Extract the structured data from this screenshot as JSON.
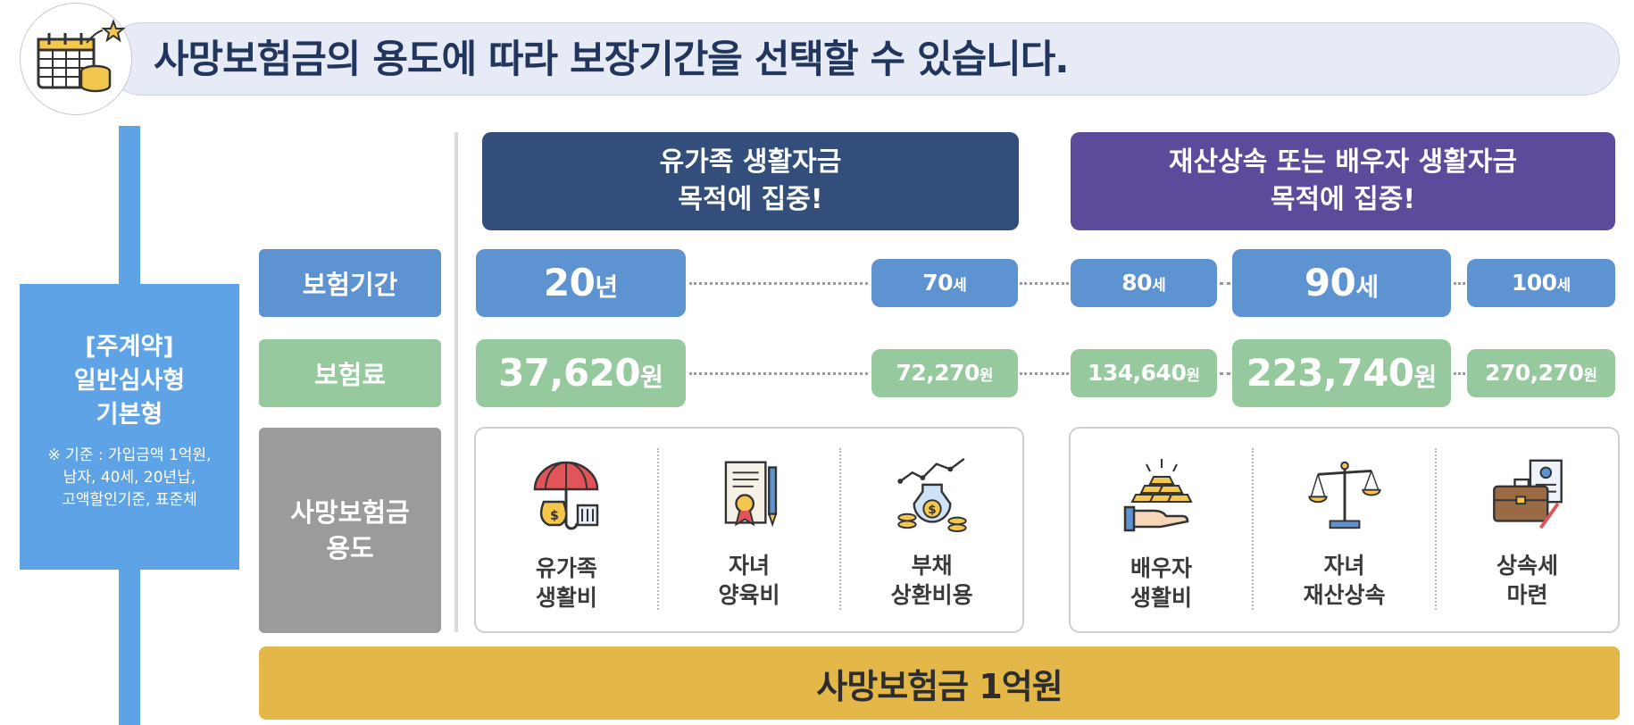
{
  "header": {
    "title": "사망보험금의 용도에 따라 보장기간을 선택할 수 있습니다.",
    "icon": "calendar-coins-icon"
  },
  "plan": {
    "title_line1": "[주계약]",
    "title_line2": "일반심사형",
    "title_line3": "기본형",
    "note_line1": "※ 기준 : 가입금액 1억원,",
    "note_line2": "남자, 40세, 20년납,",
    "note_line3": "고액할인기준, 표준체"
  },
  "row_labels": {
    "period": "보험기간",
    "premium": "보험료",
    "usage_line1": "사망보험금",
    "usage_line2": "용도"
  },
  "column_headers": {
    "left_line1": "유가족 생활자금",
    "left_line2": "목적에 집중!",
    "right_line1": "재산상속 또는 배우자 생활자금",
    "right_line2": "목적에 집중!"
  },
  "periods": [
    {
      "num": "20",
      "unit": "년"
    },
    {
      "num": "70",
      "unit": "세"
    },
    {
      "num": "80",
      "unit": "세"
    },
    {
      "num": "90",
      "unit": "세"
    },
    {
      "num": "100",
      "unit": "세"
    }
  ],
  "premiums": [
    {
      "num": "37,620",
      "unit": "원"
    },
    {
      "num": "72,270",
      "unit": "원"
    },
    {
      "num": "134,640",
      "unit": "원"
    },
    {
      "num": "223,740",
      "unit": "원"
    },
    {
      "num": "270,270",
      "unit": "원"
    }
  ],
  "usages_left": [
    {
      "line1": "유가족",
      "line2": "생활비",
      "icon": "umbrella-money-icon"
    },
    {
      "line1": "자녀",
      "line2": "양육비",
      "icon": "certificate-icon"
    },
    {
      "line1": "부채",
      "line2": "상환비용",
      "icon": "coins-growth-icon"
    }
  ],
  "usages_right": [
    {
      "line1": "배우자",
      "line2": "생활비",
      "icon": "gold-bars-hand-icon"
    },
    {
      "line1": "자녀",
      "line2": "재산상속",
      "icon": "scale-icon"
    },
    {
      "line1": "상속세",
      "line2": "마련",
      "icon": "briefcase-document-icon"
    }
  ],
  "bottom": {
    "label": "사망보험금 1억원"
  },
  "colors": {
    "navy": "#334e7a",
    "purple": "#5d4a9a",
    "blue": "#5e93d2",
    "green": "#96c99e",
    "gray": "#9b9b9b",
    "gold": "#e3b848",
    "sky": "#5ea3e6"
  }
}
